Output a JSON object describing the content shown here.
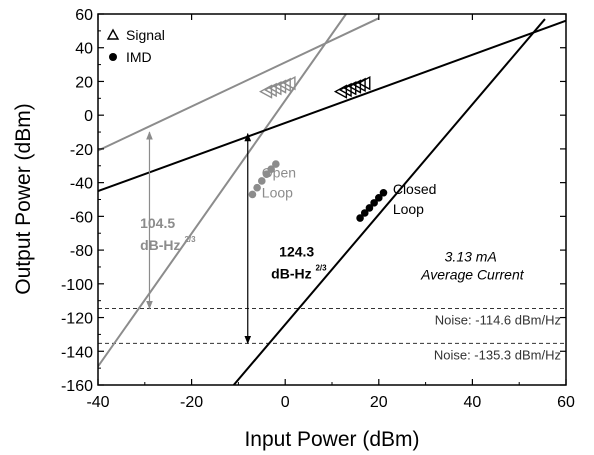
{
  "chart_data": {
    "type": "line",
    "title": "",
    "xlabel": "Input Power (dBm)",
    "ylabel": "Output Power (dBm)",
    "xlim": [
      -40,
      60
    ],
    "ylim": [
      -160,
      60
    ],
    "xticks": [
      -40,
      -20,
      0,
      20,
      40,
      60
    ],
    "yticks": [
      60,
      40,
      20,
      0,
      -20,
      -40,
      -60,
      -80,
      -100,
      -120,
      -140,
      -160
    ],
    "grid": false,
    "legend_placement": "top-left",
    "legend": [
      {
        "label": "Signal",
        "marker": "open-triangle"
      },
      {
        "label": "IMD",
        "marker": "filled-circle"
      }
    ],
    "series": [
      {
        "color": "#8c8c8c",
        "style": "line",
        "x": [
          -40,
          20
        ],
        "y": [
          -21,
          57.5
        ]
      },
      {
        "color": "#8c8c8c",
        "style": "line",
        "x": [
          -40,
          13
        ],
        "y": [
          -149,
          60
        ]
      },
      {
        "color": "#000000",
        "style": "line",
        "x": [
          -40,
          60
        ],
        "y": [
          -45,
          56
        ]
      },
      {
        "color": "#000000",
        "style": "line",
        "x": [
          -11,
          55.5
        ],
        "y": [
          -160,
          57
        ]
      },
      {
        "color": "#8c8c8c",
        "marker": "open-triangle",
        "x": [
          -4,
          -3,
          -2,
          -1,
          0,
          1
        ],
        "y": [
          14,
          15,
          16,
          17,
          18,
          19
        ]
      },
      {
        "color": "#000000",
        "marker": "open-triangle",
        "x": [
          12,
          13,
          14,
          15,
          16,
          17
        ],
        "y": [
          14,
          15,
          16,
          17,
          18,
          19
        ]
      },
      {
        "color": "#8c8c8c",
        "marker": "filled-circle",
        "x": [
          -7,
          -6,
          -5,
          -4,
          -3,
          -2
        ],
        "y": [
          -47,
          -43,
          -39,
          -35,
          -32,
          -29
        ]
      },
      {
        "color": "#000000",
        "marker": "filled-circle",
        "x": [
          16,
          17,
          18,
          19,
          20,
          21
        ],
        "y": [
          -61,
          -58,
          -55,
          -52,
          -49,
          -46
        ]
      }
    ],
    "reference_lines": [
      {
        "y": -114.6,
        "style": "dashed",
        "label": "Noise: -114.6 dBm/Hz"
      },
      {
        "y": -135.3,
        "style": "dashed",
        "label": "Noise: -135.3 dBm/Hz"
      }
    ],
    "annotations": {
      "open_loop": {
        "line1": "Open",
        "line2": "Loop",
        "color": "#8c8c8c",
        "x": -5,
        "y": -44
      },
      "closed_loop": {
        "line1": "Closed",
        "line2": "Loop",
        "color": "#000000",
        "x": 23,
        "y": -54
      },
      "sfdr_open": {
        "value": "104.5",
        "unit": "dB-Hz",
        "exp": "2/3",
        "color": "#8c8c8c",
        "x": -31,
        "y": -74,
        "arrow_x": -29,
        "arrow_y": [
          -114.6,
          -10
        ]
      },
      "sfdr_closed": {
        "value": "124.3",
        "unit": "dB-Hz",
        "exp": "2/3",
        "color": "#000000",
        "x": -3,
        "y": -91,
        "arrow_x": -8,
        "arrow_y": [
          -135.3,
          -11
        ]
      },
      "current": {
        "line1": "3.13 mA",
        "line2": "Average Current",
        "x": 40,
        "y": -94
      }
    }
  }
}
